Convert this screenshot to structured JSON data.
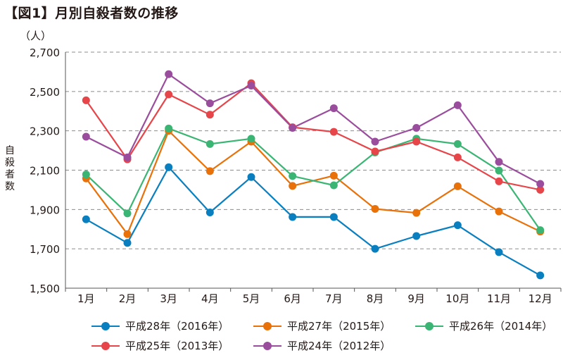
{
  "title": "【図1】月別自殺者数の推移",
  "chart_data": {
    "type": "line",
    "title": "【図1】月別自殺者数の推移",
    "yunit": "（人）",
    "ylabel_chars": [
      "自",
      "殺",
      "者",
      "数"
    ],
    "ylim": [
      1500,
      2700
    ],
    "yticks": [
      1500,
      1700,
      1900,
      2100,
      2300,
      2500,
      2700
    ],
    "ytick_labels": [
      "1,500",
      "1,700",
      "1,900",
      "2,100",
      "2,300",
      "2,500",
      "2,700"
    ],
    "categories": [
      "1月",
      "2月",
      "3月",
      "4月",
      "5月",
      "6月",
      "7月",
      "8月",
      "9月",
      "10月",
      "11月",
      "12月"
    ],
    "grid": true,
    "series": [
      {
        "name": "平成28年（2016年）",
        "color": "#0a7fbf",
        "values": [
          1850,
          1730,
          2115,
          1885,
          2065,
          1862,
          1862,
          1700,
          1765,
          1820,
          1683,
          1565
        ]
      },
      {
        "name": "平成27年（2015年）",
        "color": "#e8710a",
        "values": [
          2058,
          1775,
          2300,
          2095,
          2245,
          2020,
          2072,
          1903,
          1883,
          2018,
          1890,
          1788
        ]
      },
      {
        "name": "平成26年（2014年）",
        "color": "#3bb574",
        "values": [
          2078,
          1880,
          2312,
          2233,
          2260,
          2070,
          2023,
          2190,
          2260,
          2233,
          2098,
          1795
        ]
      },
      {
        "name": "平成25年（2013年）",
        "color": "#e6454a",
        "values": [
          2455,
          2155,
          2485,
          2382,
          2542,
          2318,
          2295,
          2195,
          2245,
          2165,
          2043,
          2000
        ]
      },
      {
        "name": "平成24年（2012年）",
        "color": "#9a4d9c",
        "values": [
          2270,
          2165,
          2588,
          2440,
          2530,
          2315,
          2415,
          2245,
          2315,
          2430,
          2142,
          2030
        ]
      }
    ]
  }
}
